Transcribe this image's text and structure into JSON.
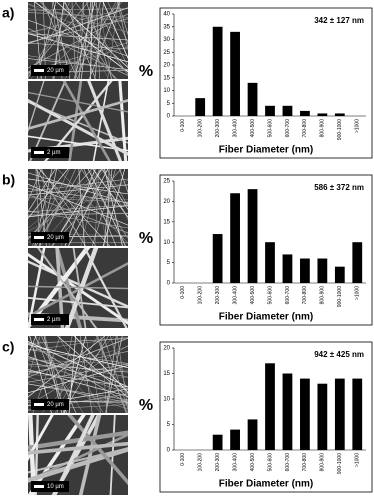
{
  "panels": [
    {
      "label": "a)",
      "scale_bars": [
        "20 µm",
        "2 µm"
      ]
    },
    {
      "label": "b)",
      "scale_bars": [
        "20 µm",
        "2 µm"
      ]
    },
    {
      "label": "c)",
      "scale_bars": [
        "20 µm",
        "10 µm"
      ]
    }
  ],
  "chart_data": [
    {
      "type": "bar",
      "annotation": "342 ± 127 nm",
      "ylabel": "%",
      "xlabel": "Fiber Diameter (nm)",
      "categories": [
        "0-100",
        "100-200",
        "200-300",
        "300-400",
        "400-500",
        "500-600",
        "600-700",
        "700-800",
        "800-900",
        "900-1000",
        ">1000"
      ],
      "values": [
        0,
        7,
        35,
        33,
        13,
        4,
        4,
        2,
        1,
        1,
        0
      ],
      "color": "#000000",
      "ylim": [
        0,
        40
      ],
      "yticks": [
        0,
        5,
        10,
        15,
        20,
        25,
        30,
        35,
        40
      ]
    },
    {
      "type": "bar",
      "annotation": "586 ± 372 nm",
      "ylabel": "%",
      "xlabel": "Fiber Diameter (nm)",
      "categories": [
        "0-100",
        "100-200",
        "200-300",
        "300-400",
        "400-500",
        "500-600",
        "600-700",
        "700-800",
        "800-900",
        "900-1000",
        ">1000"
      ],
      "values": [
        0,
        0,
        12,
        22,
        23,
        10,
        7,
        6,
        6,
        4,
        10
      ],
      "color": "#000000",
      "ylim": [
        0,
        25
      ],
      "yticks": [
        0,
        5,
        10,
        15,
        20,
        25
      ]
    },
    {
      "type": "bar",
      "annotation": "942 ± 425 nm",
      "ylabel": "%",
      "xlabel": "Fiber Diameter (nm)",
      "categories": [
        "0-100",
        "100-200",
        "200-300",
        "300-400",
        "400-500",
        "500-600",
        "600-700",
        "700-800",
        "800-900",
        "900-1000",
        ">1000"
      ],
      "values": [
        0,
        0,
        3,
        4,
        6,
        17,
        15,
        14,
        13,
        14,
        14
      ],
      "color": "#000000",
      "ylim": [
        0,
        20
      ],
      "yticks": [
        0,
        5,
        10,
        15,
        20
      ]
    }
  ]
}
